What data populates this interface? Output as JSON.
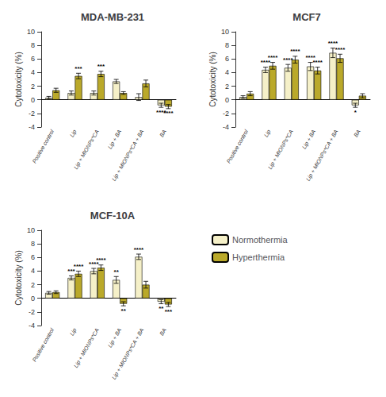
{
  "chart_data": [
    {
      "type": "bar",
      "title": "MDA-MB-231",
      "ylabel": "Cytotoxicity (%)",
      "categories": [
        "Positive control",
        "Lip",
        "Lip + MIONPs*CA",
        "Lip + BA",
        "Lip + MIONPs*CA + BA",
        "BA"
      ],
      "series": [
        {
          "name": "Normothermia",
          "color": "#F5F0C8",
          "values": [
            0.3,
            1.0,
            1.0,
            2.7,
            0.4,
            -0.8
          ],
          "errors": [
            0.2,
            0.3,
            0.3,
            0.3,
            0.5,
            0.3
          ]
        },
        {
          "name": "Hyperthermia",
          "color": "#BAA92A",
          "values": [
            1.4,
            3.5,
            3.8,
            1.0,
            2.4,
            -1.0
          ],
          "errors": [
            0.3,
            0.4,
            0.4,
            0.2,
            0.5,
            0.3
          ]
        }
      ],
      "annotations": [
        {
          "series": "Normothermia",
          "category": "BA",
          "text": "****"
        },
        {
          "series": "Hyperthermia",
          "category": "Lip",
          "text": "***"
        },
        {
          "series": "Hyperthermia",
          "category": "Lip + MIONPs*CA",
          "text": "***"
        },
        {
          "series": "Hyperthermia",
          "category": "BA",
          "text": "****"
        }
      ],
      "ylim": [
        -4,
        10
      ],
      "yticks": [
        -4,
        -2,
        0,
        2,
        4,
        6,
        8,
        10
      ],
      "grid": false
    },
    {
      "type": "bar",
      "title": "MCF7",
      "ylabel": "Cytotoxicity (%)",
      "categories": [
        "Positive control",
        "Lip",
        "Lip + MIONPs*CA",
        "Lip + BA",
        "Lip + MIONPs*CA + BA",
        "BA"
      ],
      "series": [
        {
          "name": "Normothermia",
          "color": "#F5F0C8",
          "values": [
            0.4,
            4.4,
            4.7,
            4.9,
            6.9,
            -0.8
          ],
          "errors": [
            0.2,
            0.4,
            0.5,
            0.6,
            0.7,
            0.3
          ]
        },
        {
          "name": "Hyperthermia",
          "color": "#BAA92A",
          "values": [
            0.9,
            5.0,
            5.9,
            4.3,
            6.1,
            0.6
          ],
          "errors": [
            0.3,
            0.5,
            0.5,
            0.5,
            0.6,
            0.3
          ]
        }
      ],
      "annotations": [
        {
          "series": "Normothermia",
          "category": "Lip",
          "text": "****"
        },
        {
          "series": "Normothermia",
          "category": "Lip + MIONPs*CA",
          "text": "****"
        },
        {
          "series": "Normothermia",
          "category": "Lip + BA",
          "text": "****"
        },
        {
          "series": "Normothermia",
          "category": "Lip + MIONPs*CA + BA",
          "text": "****"
        },
        {
          "series": "Normothermia",
          "category": "BA",
          "text": "*"
        },
        {
          "series": "Hyperthermia",
          "category": "Lip",
          "text": "****"
        },
        {
          "series": "Hyperthermia",
          "category": "Lip + MIONPs*CA",
          "text": "****"
        },
        {
          "series": "Hyperthermia",
          "category": "Lip + BA",
          "text": "****"
        },
        {
          "series": "Hyperthermia",
          "category": "Lip + MIONPs*CA + BA",
          "text": "****"
        }
      ],
      "ylim": [
        -4,
        10
      ],
      "yticks": [
        -4,
        -2,
        0,
        2,
        4,
        6,
        8,
        10
      ],
      "grid": false
    },
    {
      "type": "bar",
      "title": "MCF-10A",
      "ylabel": "Cytotoxicity (%)",
      "categories": [
        "Positive control",
        "Lip",
        "Lip + MIONPs*CA",
        "Lip + BA",
        "Lip + MIONPs*CA + BA",
        "BA"
      ],
      "series": [
        {
          "name": "Normothermia",
          "color": "#F5F0C8",
          "values": [
            0.8,
            3.0,
            4.0,
            2.7,
            6.1,
            -0.5
          ],
          "errors": [
            0.2,
            0.3,
            0.4,
            0.5,
            0.4,
            0.3
          ]
        },
        {
          "name": "Hyperthermia",
          "color": "#BAA92A",
          "values": [
            0.9,
            3.6,
            4.5,
            -0.8,
            2.0,
            -0.9
          ],
          "errors": [
            0.2,
            0.4,
            0.4,
            0.3,
            0.5,
            0.3
          ]
        }
      ],
      "annotations": [
        {
          "series": "Normothermia",
          "category": "Lip",
          "text": "***"
        },
        {
          "series": "Normothermia",
          "category": "Lip + MIONPs*CA",
          "text": "****"
        },
        {
          "series": "Normothermia",
          "category": "Lip + BA",
          "text": "**"
        },
        {
          "series": "Normothermia",
          "category": "Lip + MIONPs*CA + BA",
          "text": "****"
        },
        {
          "series": "Normothermia",
          "category": "BA",
          "text": "**"
        },
        {
          "series": "Hyperthermia",
          "category": "Lip",
          "text": "****"
        },
        {
          "series": "Hyperthermia",
          "category": "Lip + MIONPs*CA",
          "text": "****"
        },
        {
          "series": "Hyperthermia",
          "category": "Lip + BA",
          "text": "**"
        },
        {
          "series": "Hyperthermia",
          "category": "BA",
          "text": "***"
        }
      ],
      "ylim": [
        -4,
        10
      ],
      "yticks": [
        -4,
        -2,
        0,
        2,
        4,
        6,
        8,
        10
      ],
      "grid": false,
      "legend": "right"
    }
  ]
}
